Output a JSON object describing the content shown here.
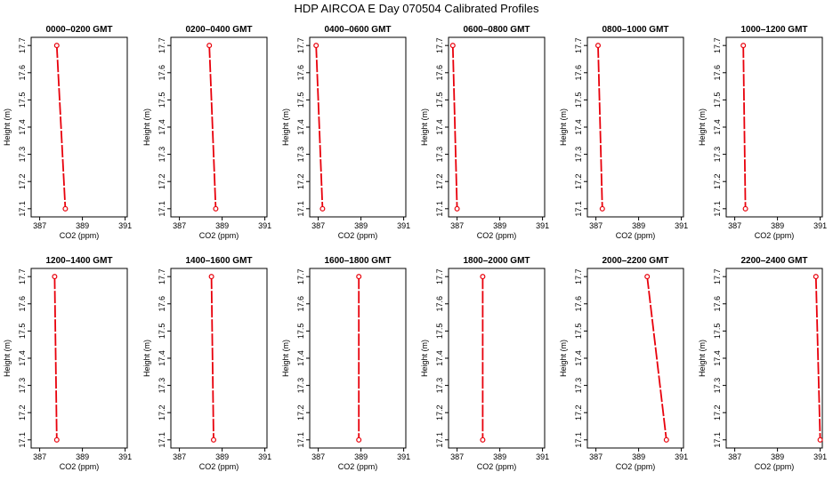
{
  "figure": {
    "title": "HDP  AIRCOA E  Day 070504  Calibrated Profiles"
  },
  "chart_data": {
    "type": "line",
    "xlabel": "CO2 (ppm)",
    "ylabel": "Height (m)",
    "xlim": [
      386.6,
      391.1
    ],
    "ylim": [
      17.07,
      17.73
    ],
    "x_ticks": [
      "387",
      "389",
      "391"
    ],
    "y_ticks": [
      "17.1",
      "17.2",
      "17.3",
      "17.4",
      "17.5",
      "17.6",
      "17.7"
    ],
    "line_color": "#e8000b",
    "line_style": "dashed",
    "marker": "open-circle",
    "panels": [
      {
        "title": "0000–0200 GMT",
        "x": [
          387.8,
          388.2
        ],
        "y": [
          17.7,
          17.1
        ]
      },
      {
        "title": "0200–0400 GMT",
        "x": [
          388.4,
          388.7
        ],
        "y": [
          17.7,
          17.1
        ]
      },
      {
        "title": "0400–0600 GMT",
        "x": [
          386.9,
          387.2
        ],
        "y": [
          17.7,
          17.1
        ]
      },
      {
        "title": "0600–0800 GMT",
        "x": [
          386.8,
          387.0
        ],
        "y": [
          17.7,
          17.1
        ]
      },
      {
        "title": "0800–1000 GMT",
        "x": [
          387.1,
          387.3
        ],
        "y": [
          17.7,
          17.1
        ]
      },
      {
        "title": "1000–1200 GMT",
        "x": [
          387.4,
          387.5
        ],
        "y": [
          17.7,
          17.1
        ]
      },
      {
        "title": "1200–1400 GMT",
        "x": [
          387.7,
          387.8
        ],
        "y": [
          17.7,
          17.1
        ]
      },
      {
        "title": "1400–1600 GMT",
        "x": [
          388.5,
          388.6
        ],
        "y": [
          17.7,
          17.1
        ]
      },
      {
        "title": "1600–1800 GMT",
        "x": [
          388.9,
          388.9
        ],
        "y": [
          17.7,
          17.1
        ]
      },
      {
        "title": "1800–2000 GMT",
        "x": [
          388.2,
          388.2
        ],
        "y": [
          17.7,
          17.1
        ]
      },
      {
        "title": "2000–2200 GMT",
        "x": [
          389.4,
          390.3
        ],
        "y": [
          17.7,
          17.1
        ]
      },
      {
        "title": "2200–2400 GMT",
        "x": [
          390.8,
          391.0
        ],
        "y": [
          17.7,
          17.1
        ]
      }
    ]
  }
}
